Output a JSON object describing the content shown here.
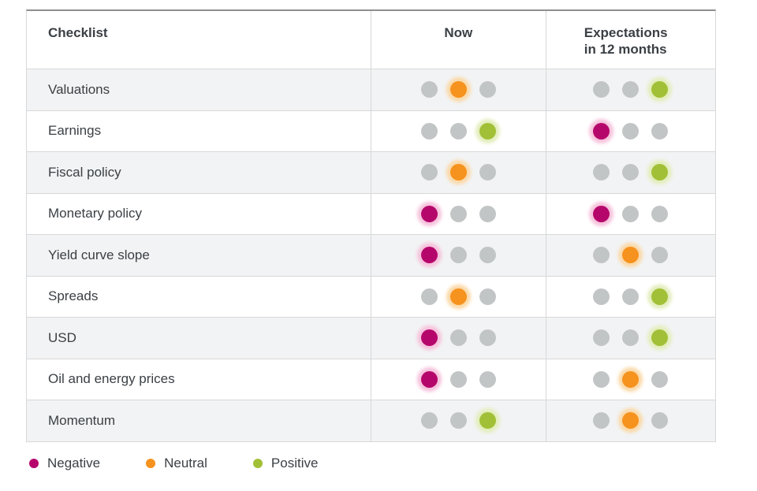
{
  "colors": {
    "negative": "#b5076b",
    "neutral": "#f6921e",
    "positive": "#a2c037",
    "inactive": "#c2c5c6",
    "negative_halo": "#f6c2dc",
    "neutral_halo": "#fbd9a8",
    "positive_halo": "#e3eebc"
  },
  "table": {
    "headers": {
      "checklist": "Checklist",
      "now": "Now",
      "expectations": "Expectations in 12 months"
    },
    "state_positions": [
      "negative",
      "neutral",
      "positive"
    ],
    "rows": [
      {
        "label": "Valuations",
        "now": "neutral",
        "expectations": "positive"
      },
      {
        "label": "Earnings",
        "now": "positive",
        "expectations": "negative"
      },
      {
        "label": "Fiscal policy",
        "now": "neutral",
        "expectations": "positive"
      },
      {
        "label": "Monetary policy",
        "now": "negative",
        "expectations": "negative"
      },
      {
        "label": "Yield curve slope",
        "now": "negative",
        "expectations": "neutral"
      },
      {
        "label": "Spreads",
        "now": "neutral",
        "expectations": "positive"
      },
      {
        "label": "USD",
        "now": "negative",
        "expectations": "positive"
      },
      {
        "label": "Oil and energy prices",
        "now": "negative",
        "expectations": "neutral"
      },
      {
        "label": "Momentum",
        "now": "positive",
        "expectations": "neutral"
      }
    ]
  },
  "legend": [
    {
      "label": "Negative",
      "state": "negative"
    },
    {
      "label": "Neutral",
      "state": "neutral"
    },
    {
      "label": "Positive",
      "state": "positive"
    }
  ],
  "chart_data": {
    "type": "table",
    "title": "Checklist",
    "columns": [
      "Checklist",
      "Now",
      "Expectations in 12 months"
    ],
    "rows": [
      [
        "Valuations",
        "Neutral",
        "Positive"
      ],
      [
        "Earnings",
        "Positive",
        "Negative"
      ],
      [
        "Fiscal policy",
        "Neutral",
        "Positive"
      ],
      [
        "Monetary policy",
        "Negative",
        "Negative"
      ],
      [
        "Yield curve slope",
        "Negative",
        "Neutral"
      ],
      [
        "Spreads",
        "Neutral",
        "Positive"
      ],
      [
        "USD",
        "Negative",
        "Positive"
      ],
      [
        "Oil and energy prices",
        "Negative",
        "Neutral"
      ],
      [
        "Momentum",
        "Positive",
        "Neutral"
      ]
    ],
    "legend_entries": [
      "Negative",
      "Neutral",
      "Positive"
    ],
    "notes": "Each cell shows three dots; highlighted dot position encodes state (left=negative magenta, middle=neutral orange, right=positive green)."
  }
}
